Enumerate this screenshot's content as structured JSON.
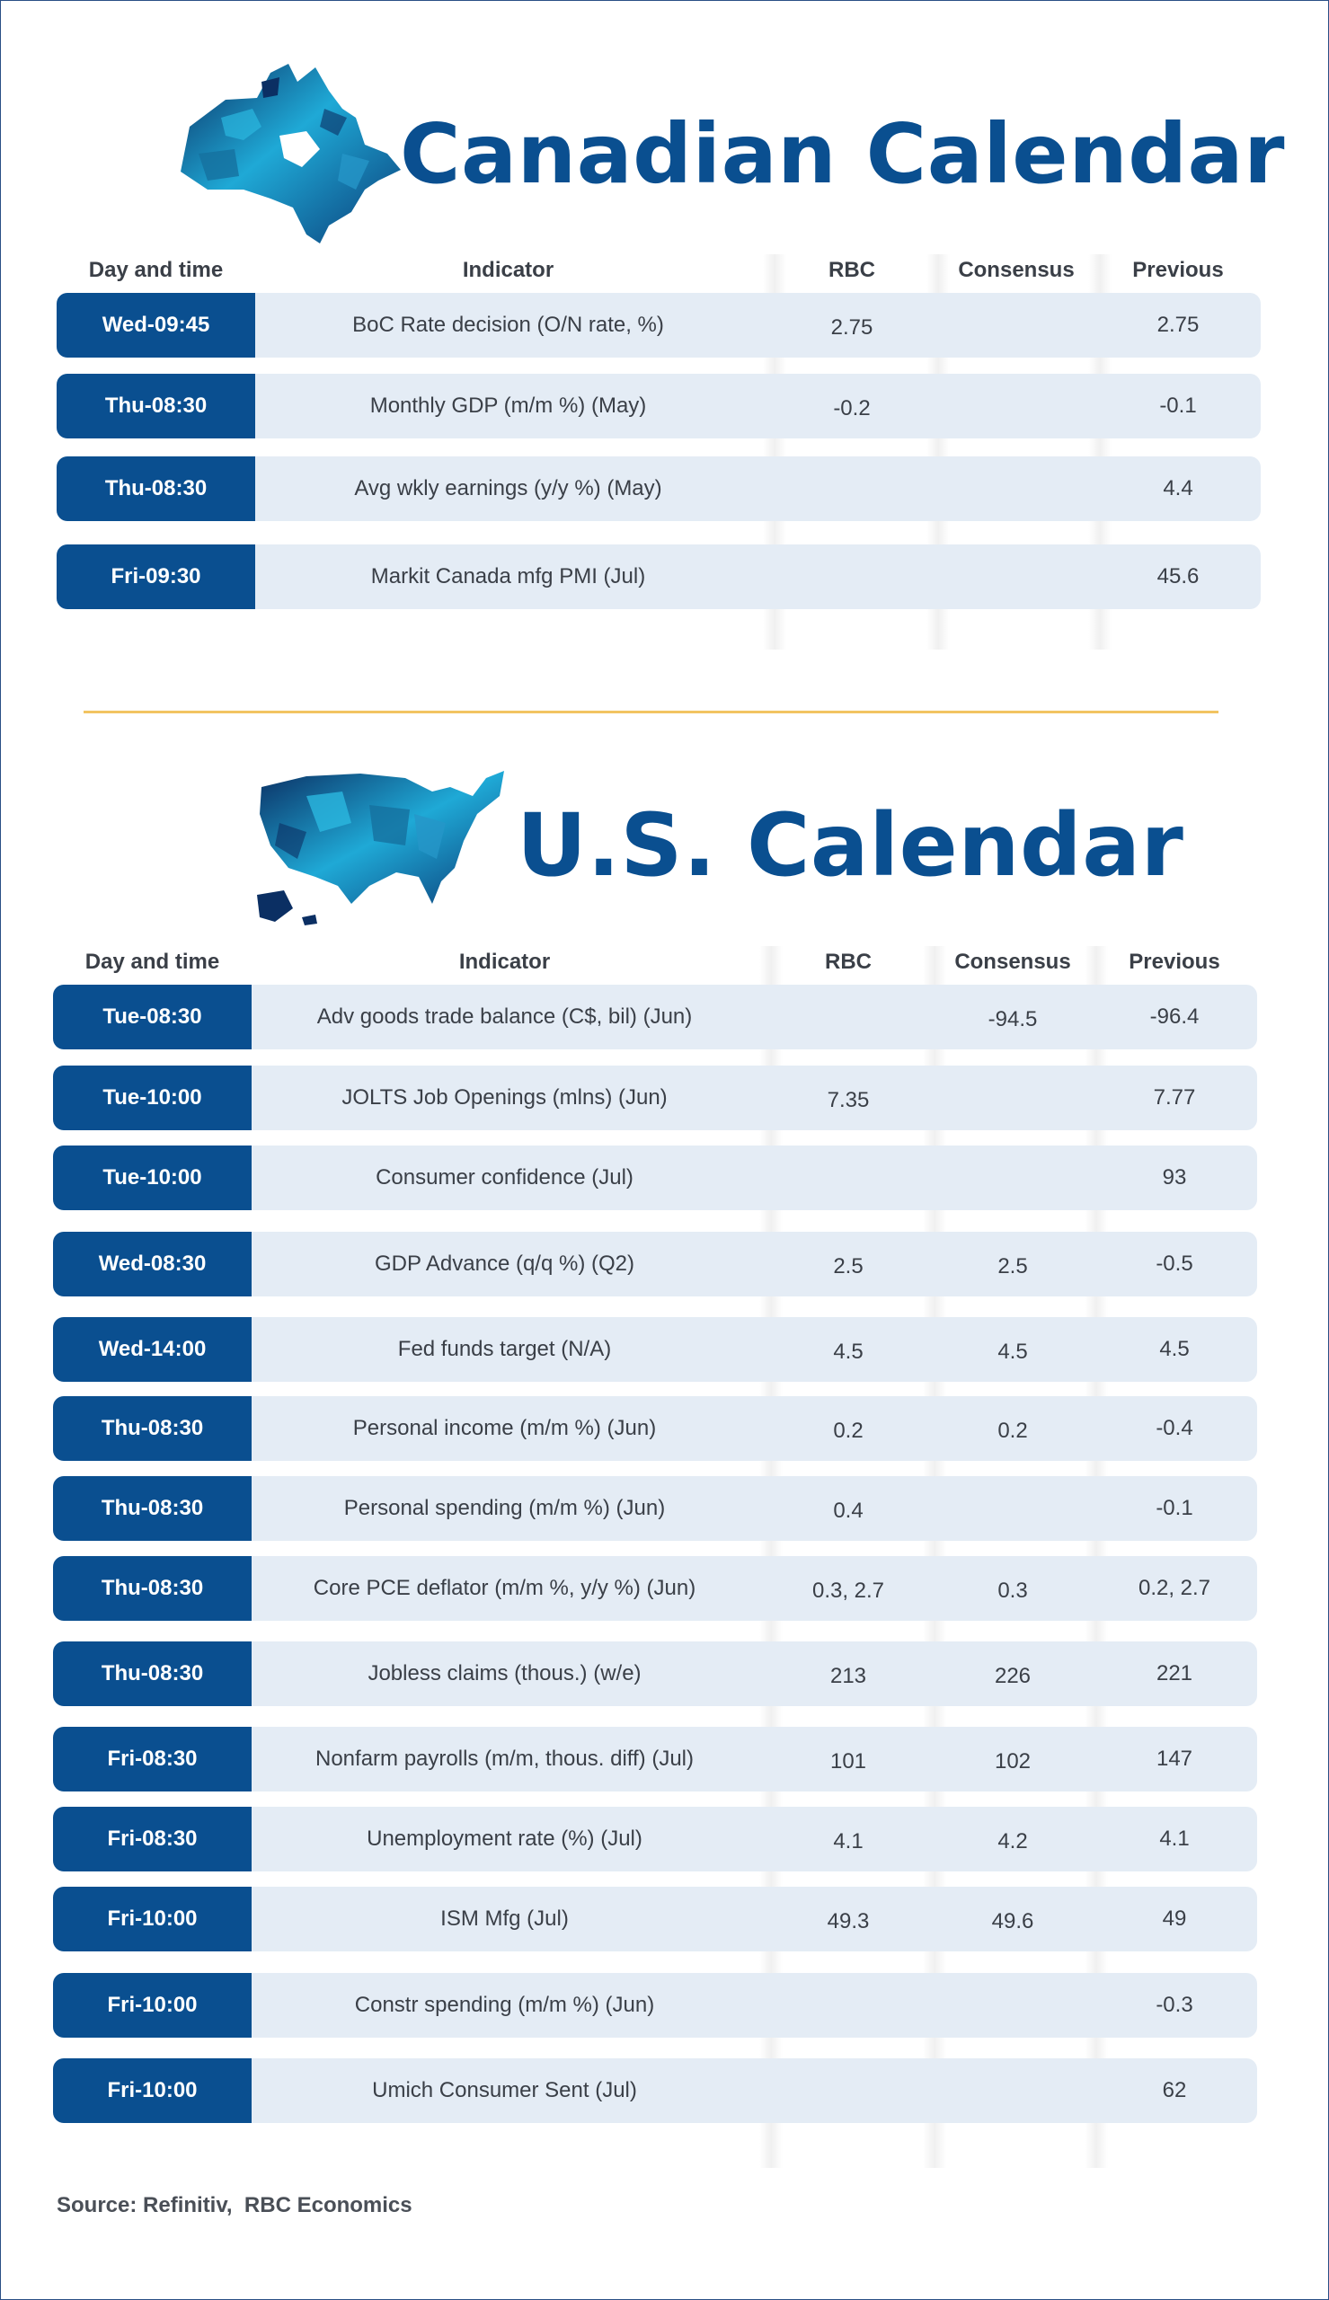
{
  "canada": {
    "title": "Canadian Calendar",
    "headers": {
      "day": "Day and time",
      "indicator": "Indicator",
      "rbc": "RBC",
      "consensus": "Consensus",
      "previous": "Previous"
    },
    "rows": [
      {
        "day": "Wed-09:45",
        "indicator": "BoC Rate decision (O/N rate, %)",
        "rbc": "2.75",
        "consensus": "",
        "previous": "2.75"
      },
      {
        "day": "Thu-08:30",
        "indicator": "Monthly GDP (m/m %) (May)",
        "rbc": "-0.2",
        "consensus": "",
        "previous": "-0.1"
      },
      {
        "day": "Thu-08:30",
        "indicator": "Avg wkly earnings (y/y %) (May)",
        "rbc": "",
        "consensus": "",
        "previous": "4.4"
      },
      {
        "day": "Fri-09:30",
        "indicator": "Markit Canada mfg PMI (Jul)",
        "rbc": "",
        "consensus": "",
        "previous": "45.6"
      }
    ]
  },
  "us": {
    "title": "U.S. Calendar",
    "headers": {
      "day": "Day and time",
      "indicator": "Indicator",
      "rbc": "RBC",
      "consensus": "Consensus",
      "previous": "Previous"
    },
    "rows": [
      {
        "day": "Tue-08:30",
        "indicator": "Adv goods trade balance (C$, bil) (Jun)",
        "rbc": "",
        "consensus": "-94.5",
        "previous": "-96.4"
      },
      {
        "day": "Tue-10:00",
        "indicator": "JOLTS Job Openings (mlns) (Jun)",
        "rbc": "7.35",
        "consensus": "",
        "previous": "7.77"
      },
      {
        "day": "Tue-10:00",
        "indicator": "Consumer confidence (Jul)",
        "rbc": "",
        "consensus": "",
        "previous": "93"
      },
      {
        "day": "Wed-08:30",
        "indicator": "GDP Advance (q/q %) (Q2)",
        "rbc": "2.5",
        "consensus": "2.5",
        "previous": "-0.5"
      },
      {
        "day": "Wed-14:00",
        "indicator": "Fed funds target (N/A)",
        "rbc": "4.5",
        "consensus": "4.5",
        "previous": "4.5"
      },
      {
        "day": "Thu-08:30",
        "indicator": "Personal income (m/m %) (Jun)",
        "rbc": "0.2",
        "consensus": "0.2",
        "previous": "-0.4"
      },
      {
        "day": "Thu-08:30",
        "indicator": "Personal spending (m/m %) (Jun)",
        "rbc": "0.4",
        "consensus": "",
        "previous": "-0.1"
      },
      {
        "day": "Thu-08:30",
        "indicator": "Core PCE deflator (m/m %, y/y %) (Jun)",
        "rbc": "0.3, 2.7",
        "consensus": "0.3",
        "previous": "0.2, 2.7"
      },
      {
        "day": "Thu-08:30",
        "indicator": "Jobless claims (thous.) (w/e)",
        "rbc": "213",
        "consensus": "226",
        "previous": "221"
      },
      {
        "day": "Fri-08:30",
        "indicator": "Nonfarm payrolls (m/m, thous. diff) (Jul)",
        "rbc": "101",
        "consensus": "102",
        "previous": "147"
      },
      {
        "day": "Fri-08:30",
        "indicator": "Unemployment rate (%) (Jul)",
        "rbc": "4.1",
        "consensus": "4.2",
        "previous": "4.1"
      },
      {
        "day": "Fri-10:00",
        "indicator": "ISM Mfg (Jul)",
        "rbc": "49.3",
        "consensus": "49.6",
        "previous": "49"
      },
      {
        "day": "Fri-10:00",
        "indicator": "Constr spending (m/m %) (Jun)",
        "rbc": "",
        "consensus": "",
        "previous": "-0.3"
      },
      {
        "day": "Fri-10:00",
        "indicator": "Umich Consumer Sent (Jul)",
        "rbc": "",
        "consensus": "",
        "previous": "62"
      }
    ]
  },
  "source": "Source: Refinitiv,  RBC Economics",
  "colors": {
    "accent": "#0a4f90",
    "row_bg": "#e4ecf5",
    "divider": "#f2c461",
    "map_light": "#1fa9d6",
    "map_dark": "#0b2f63"
  }
}
